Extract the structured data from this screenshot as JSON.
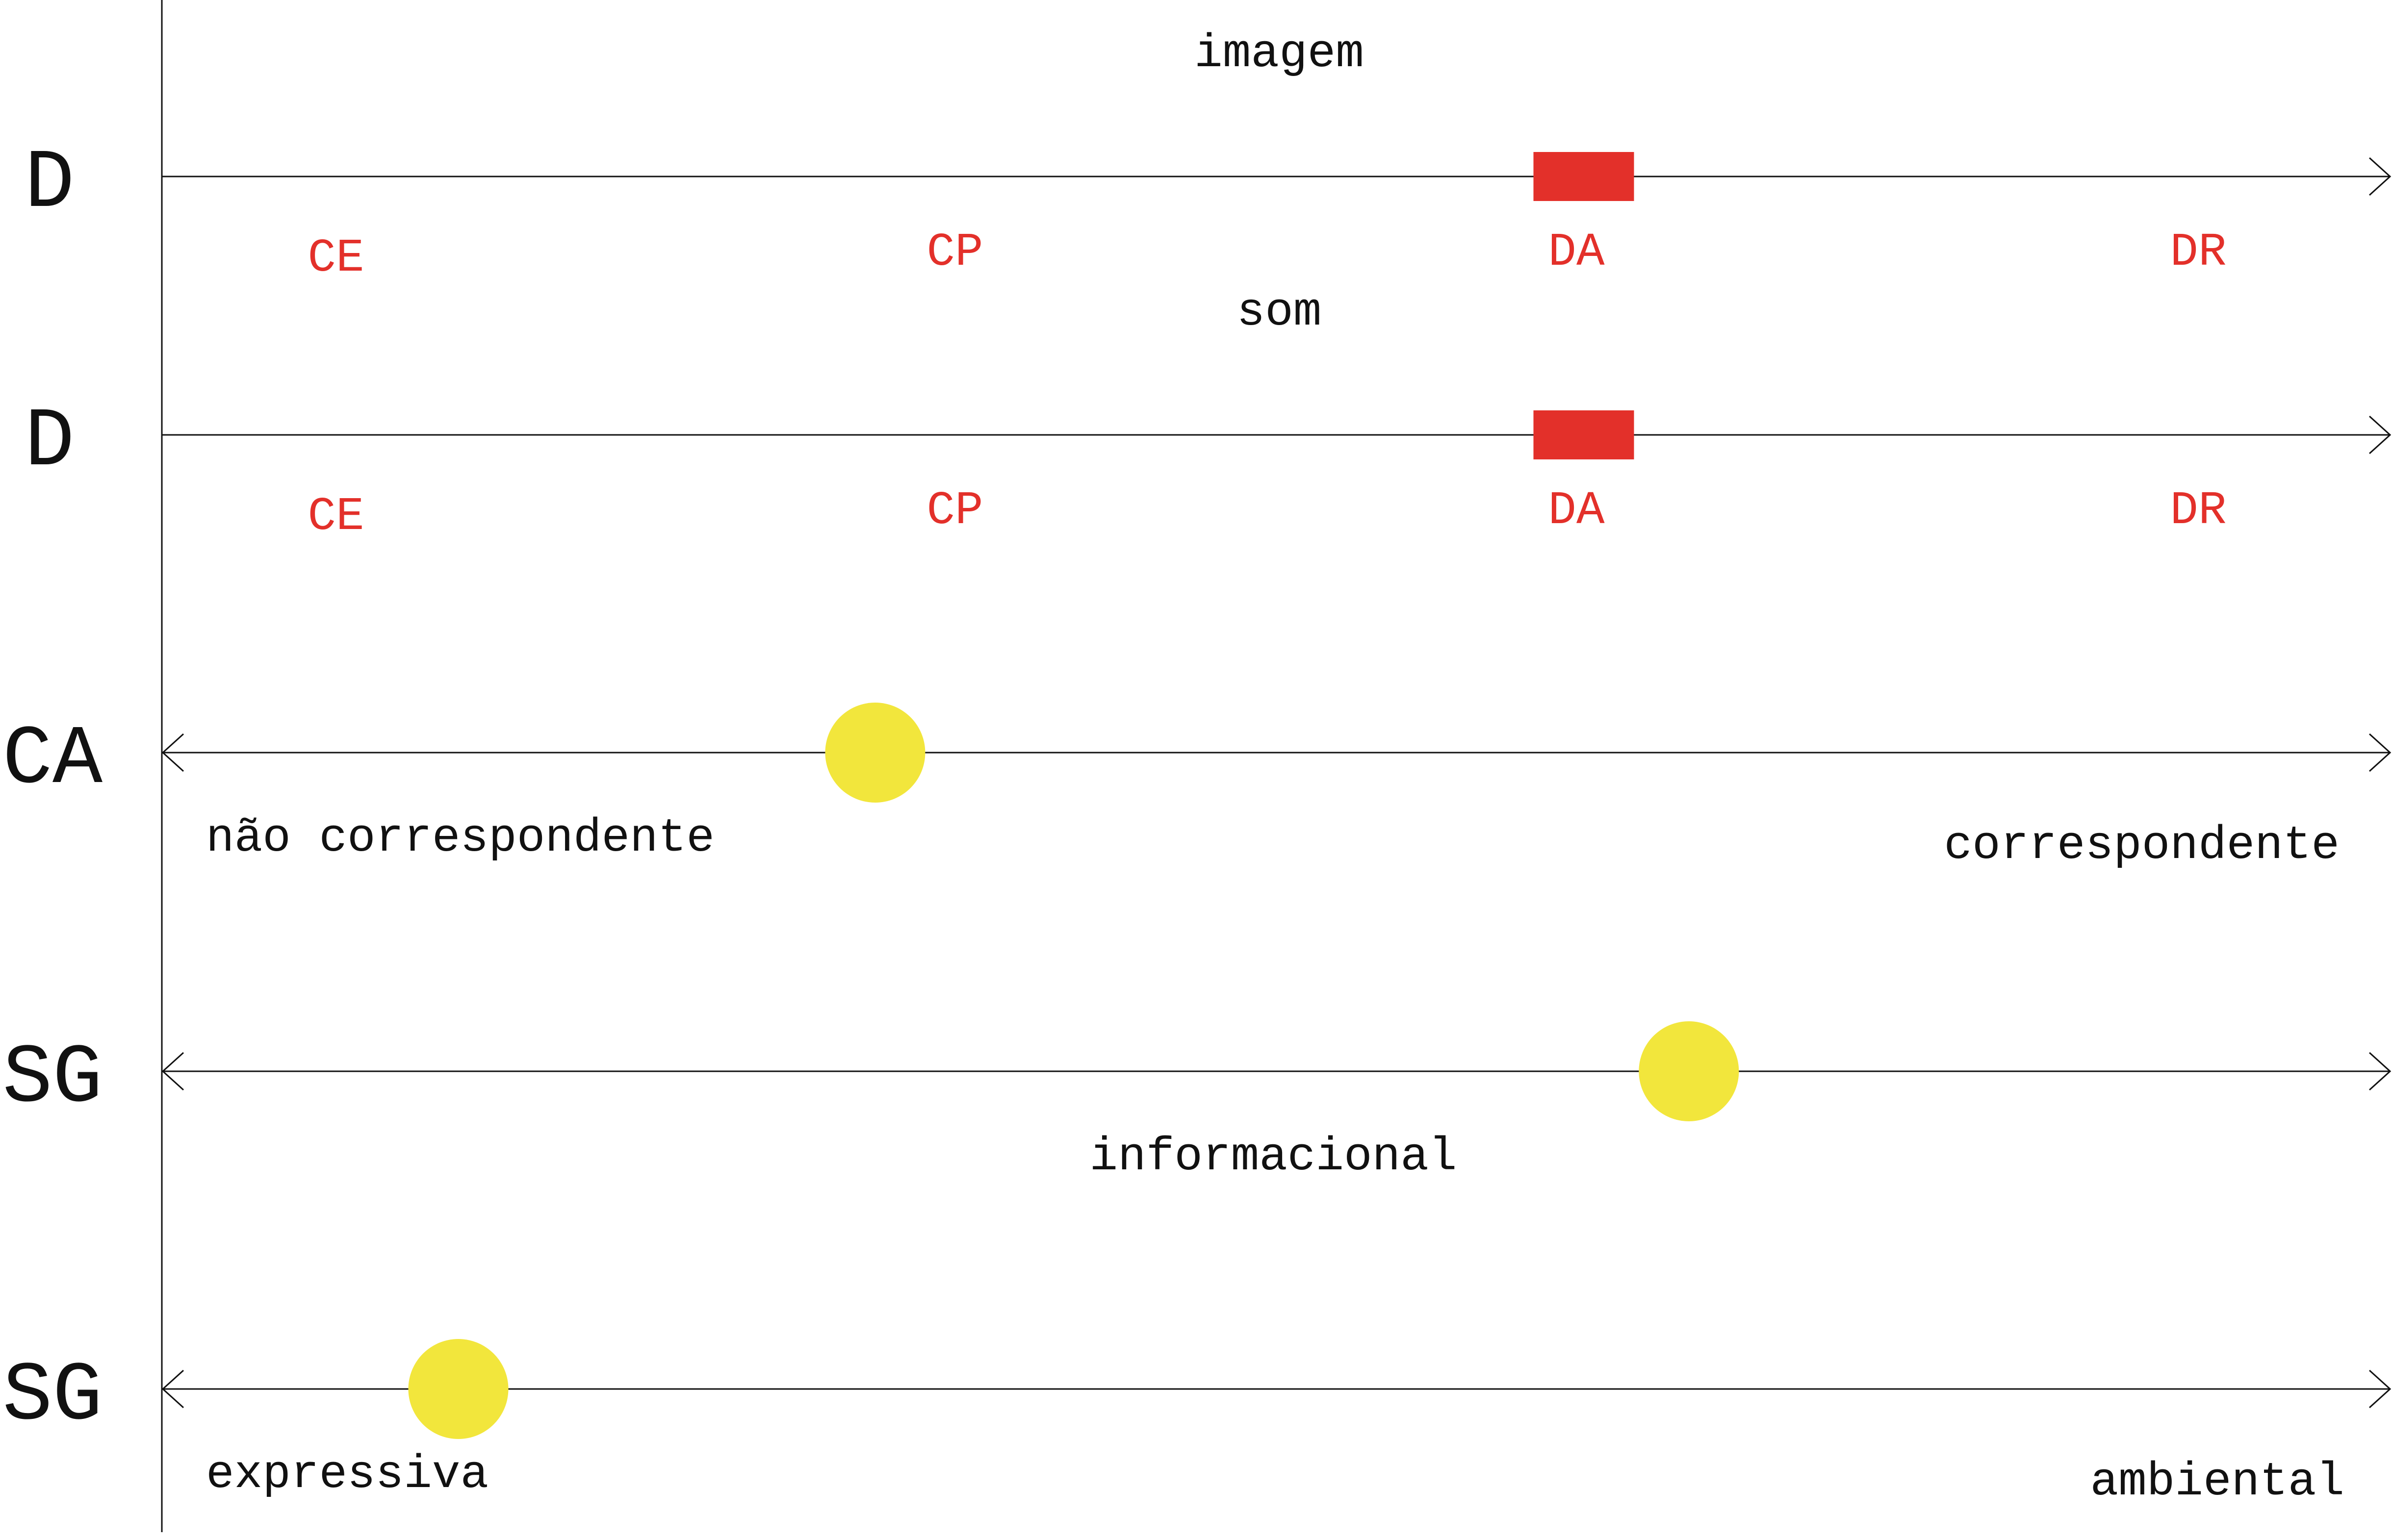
{
  "colors": {
    "category_text": "#e3302a",
    "rect_marker": "#e3302a",
    "dot_marker": "#f2e63c",
    "line": "#111111"
  },
  "scales": [
    {
      "id": "image-scale",
      "label": "D",
      "title": "imagem",
      "direction": "forward",
      "categories": [
        "CE",
        "CP",
        "DA",
        "DR"
      ],
      "end_labels": [],
      "marker": {
        "kind": "rect",
        "category": "DA"
      }
    },
    {
      "id": "sound-scale",
      "label": "D",
      "title": "som",
      "direction": "forward",
      "categories": [
        "CE",
        "CP",
        "DA",
        "DR"
      ],
      "end_labels": [],
      "marker": {
        "kind": "rect",
        "category": "DA"
      }
    },
    {
      "id": "ca-scale",
      "label": "CA",
      "title": "",
      "direction": "both",
      "categories": [],
      "end_labels": [
        "não correspondente",
        "correspondente"
      ],
      "marker": {
        "kind": "dot",
        "position": 0.32
      }
    },
    {
      "id": "sg-scale-informational",
      "label": "SG",
      "title": "",
      "direction": "both",
      "categories": [],
      "end_labels": [
        "informacional"
      ],
      "marker": {
        "kind": "dot",
        "position": 0.685
      }
    },
    {
      "id": "sg-scale-expressive",
      "label": "SG",
      "title": "",
      "direction": "both",
      "categories": [],
      "end_labels": [
        "expressiva",
        "ambiental"
      ],
      "marker": {
        "kind": "dot",
        "position": 0.133
      }
    }
  ]
}
